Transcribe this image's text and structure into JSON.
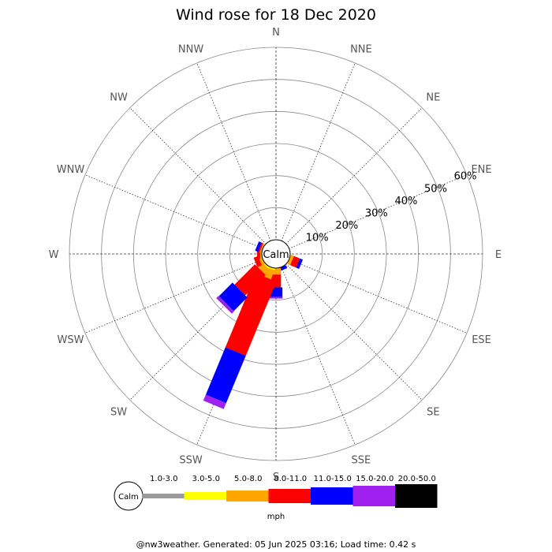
{
  "chart_data": {
    "type": "wind-rose",
    "title": "Wind rose for 18 Dec 2020",
    "directions": [
      "N",
      "NNE",
      "NE",
      "ENE",
      "E",
      "ESE",
      "SE",
      "SSE",
      "S",
      "SSW",
      "SW",
      "WSW",
      "W",
      "WNW",
      "NW",
      "NNW"
    ],
    "ring_labels": [
      "10%",
      "20%",
      "30%",
      "40%",
      "50%",
      "60%"
    ],
    "ring_values": [
      10,
      20,
      30,
      40,
      50,
      60
    ],
    "r_max": 60,
    "center_label": "Calm",
    "speed_bins": [
      {
        "label": "1.0-3.0",
        "color": "#999999"
      },
      {
        "label": "3.0-5.0",
        "color": "#ffff00"
      },
      {
        "label": "5.0-8.0",
        "color": "#ffa500"
      },
      {
        "label": "8.0-11.0",
        "color": "#ff0000"
      },
      {
        "label": "11.0-15.0",
        "color": "#0000ff"
      },
      {
        "label": "15.0-20.0",
        "color": "#a020f0"
      },
      {
        "label": "20.0-50.0",
        "color": "#000000"
      }
    ],
    "series": [
      {
        "direction": "ESE",
        "values": [
          0,
          0,
          1,
          2,
          1,
          0,
          0
        ]
      },
      {
        "direction": "SSE",
        "values": [
          0,
          0,
          0,
          0,
          1,
          0,
          0
        ]
      },
      {
        "direction": "S",
        "values": [
          0,
          0,
          2,
          4,
          3,
          0.5,
          0
        ]
      },
      {
        "direction": "SSW",
        "values": [
          0,
          0.5,
          3,
          25,
          16,
          2,
          0
        ]
      },
      {
        "direction": "SW",
        "values": [
          0,
          0.5,
          2,
          9,
          6,
          1,
          0
        ]
      },
      {
        "direction": "WSW",
        "values": [
          0,
          0,
          1,
          1.5,
          0,
          0,
          0
        ]
      },
      {
        "direction": "W",
        "values": [
          0,
          0,
          0.5,
          1,
          0,
          0,
          0
        ]
      },
      {
        "direction": "WNW",
        "values": [
          0,
          0,
          0.5,
          0.5,
          1,
          0,
          0
        ]
      }
    ],
    "unit_label": "mph"
  },
  "legend": {
    "calm_label": "Calm",
    "unit": "mph"
  },
  "footer": {
    "text": "@nw3weather. Generated: 05 Jun 2025 03:16; Load time: 0.42 s"
  }
}
